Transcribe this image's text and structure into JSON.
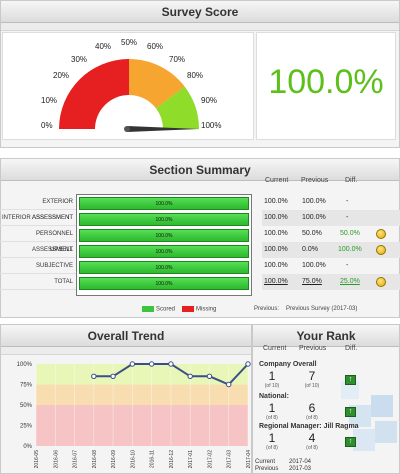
{
  "survey_score": {
    "title": "Survey Score",
    "gauge_labels": [
      "0%",
      "10%",
      "20%",
      "30%",
      "40%",
      "50%",
      "60%",
      "70%",
      "80%",
      "90%",
      "100%"
    ],
    "value_text": "100.0%",
    "value": 100.0,
    "colors": {
      "red": "#e62020",
      "orange": "#f7a531",
      "green": "#8fdc2a",
      "score": "#5cbf1a"
    }
  },
  "section_summary": {
    "title": "Section Summary",
    "col_current": "Current",
    "col_previous": "Previous",
    "col_diff": "Diff.",
    "rows": [
      {
        "label": "EXTERIOR ASSESSMENT",
        "bar": "100.0%",
        "current": "100.0%",
        "previous": "100.0%",
        "diff": "-",
        "smile": false
      },
      {
        "label": "INTERIOR ASSESSMENT",
        "bar": "100.0%",
        "current": "100.0%",
        "previous": "100.0%",
        "diff": "-",
        "smile": false
      },
      {
        "label": "PERSONNEL ASSESSMENT",
        "bar": "100.0%",
        "current": "100.0%",
        "previous": "50.0%",
        "diff": "50.0%",
        "smile": true
      },
      {
        "label": "UPSELL",
        "bar": "100.0%",
        "current": "100.0%",
        "previous": "0.0%",
        "diff": "100.0%",
        "smile": true
      },
      {
        "label": "SUBJECTIVE",
        "bar": "100.0%",
        "current": "100.0%",
        "previous": "100.0%",
        "diff": "-",
        "smile": false
      },
      {
        "label": "TOTAL",
        "bar": "100.0%",
        "current": "100.0%",
        "previous": "75.0%",
        "diff": "25.0%",
        "smile": true
      }
    ],
    "legend_scored": "Scored",
    "legend_missing": "Missing",
    "previous_label": "Previous:",
    "previous_value": "Previous Survey (2017-03)"
  },
  "overall_trend": {
    "title": "Overall Trend",
    "chart_data": {
      "type": "line",
      "x": [
        "2016-05",
        "2016-06",
        "2016-07",
        "2016-08",
        "2016-09",
        "2016-10",
        "2016-11",
        "2016-12",
        "2017-01",
        "2017-02",
        "2017-03",
        "2017-04"
      ],
      "series": [
        {
          "values": [
            null,
            null,
            null,
            85,
            85,
            100,
            100,
            100,
            85,
            85,
            75,
            100
          ]
        }
      ],
      "y_ticks": [
        "0%",
        "25%",
        "50%",
        "75%",
        "100%"
      ],
      "ylim": [
        0,
        100
      ]
    }
  },
  "your_rank": {
    "title": "Your Rank",
    "col_current": "Current",
    "col_previous": "Previous",
    "col_diff": "Diff.",
    "groups": [
      {
        "label": "Company Overall",
        "current": "1",
        "current_of": "(of 10)",
        "previous": "7",
        "previous_of": "(of 10)"
      },
      {
        "label": "National:",
        "current": "1",
        "current_of": "(of 8)",
        "previous": "6",
        "previous_of": "(of 8)"
      },
      {
        "label": "Regional Manager: Jill Ragma",
        "current": "1",
        "current_of": "(of 8)",
        "previous": "4",
        "previous_of": "(of 8)"
      }
    ],
    "footer_current_label": "Current",
    "footer_current_value": "2017-04",
    "footer_previous_label": "Previous",
    "footer_previous_value": "2017-03"
  }
}
